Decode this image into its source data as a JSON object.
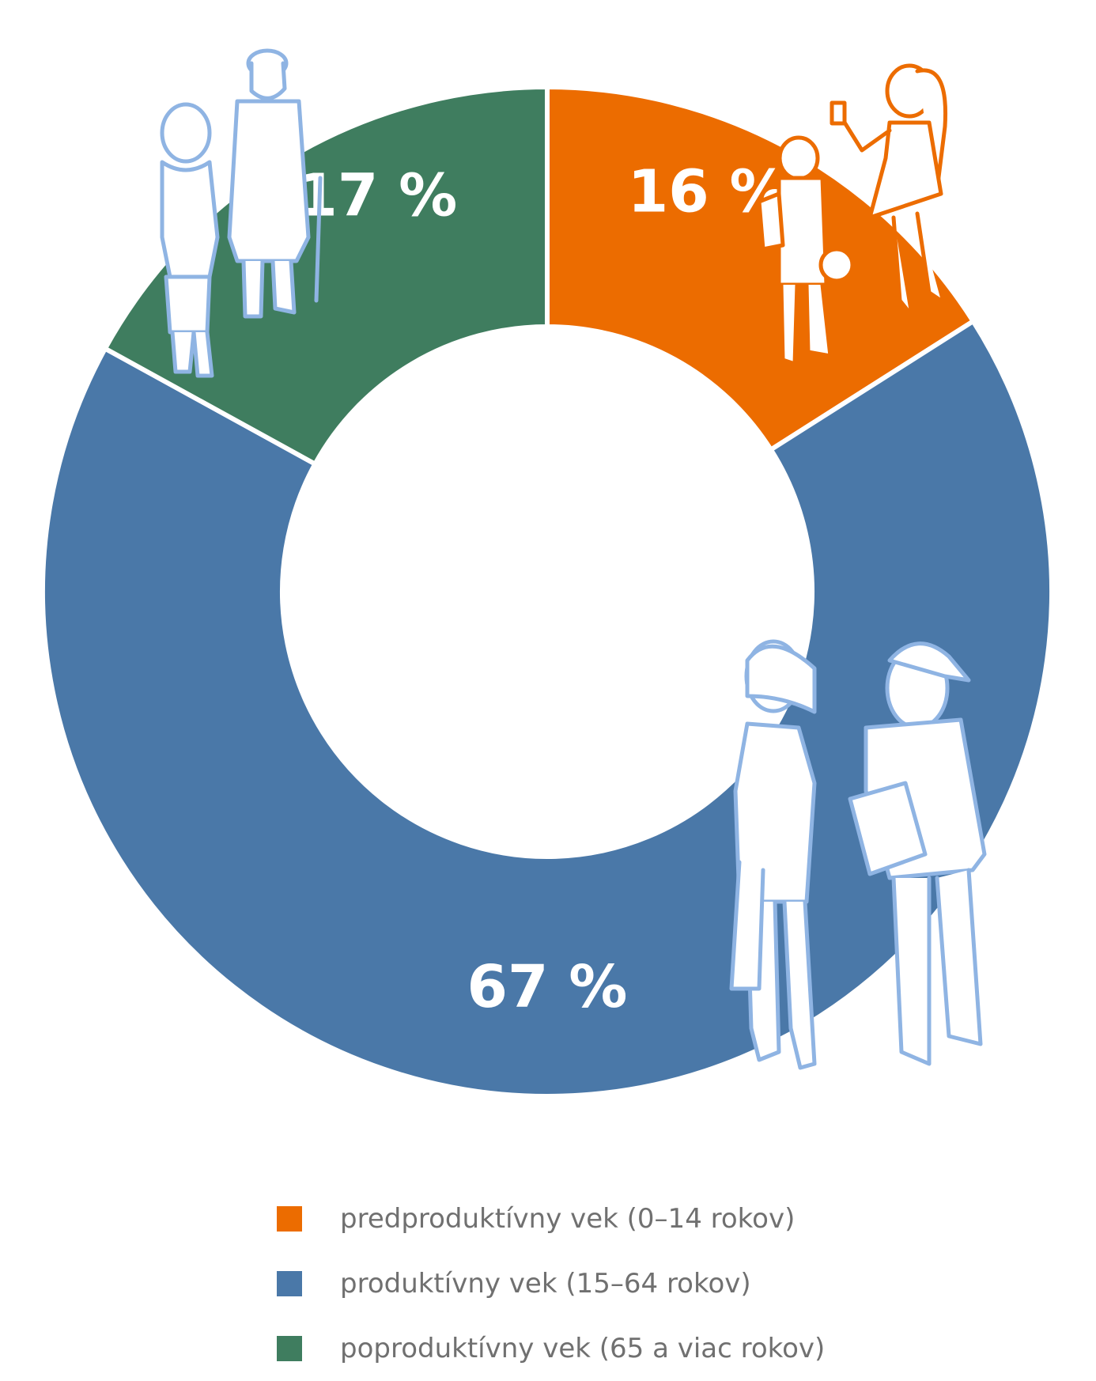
{
  "chart_data": {
    "type": "pie",
    "donut": true,
    "categories": [
      "predproduktívny vek (0–14 rokov)",
      "produktívny vek (15–64 rokov)",
      "poproduktívny vek (65 a viac rokov)"
    ],
    "values": [
      16,
      67,
      17
    ],
    "value_labels": [
      "16 %",
      "67 %",
      "17 %"
    ],
    "colors": [
      "#EC6C00",
      "#4A78A8",
      "#3F7D5F"
    ],
    "icons": [
      "children-figures-icon",
      "working-adults-figures-icon",
      "elderly-couple-figures-icon"
    ],
    "legend_position": "bottom",
    "start_angle_deg": 0,
    "direction": "clockwise"
  },
  "legend": {
    "items": [
      {
        "label": "predproduktívny vek (0–14 rokov)",
        "color": "#EC6C00"
      },
      {
        "label": "produktívny vek (15–64 rokov)",
        "color": "#4A78A8"
      },
      {
        "label": "poproduktívny vek (65 a viac rokov)",
        "color": "#3F7D5F"
      }
    ]
  }
}
